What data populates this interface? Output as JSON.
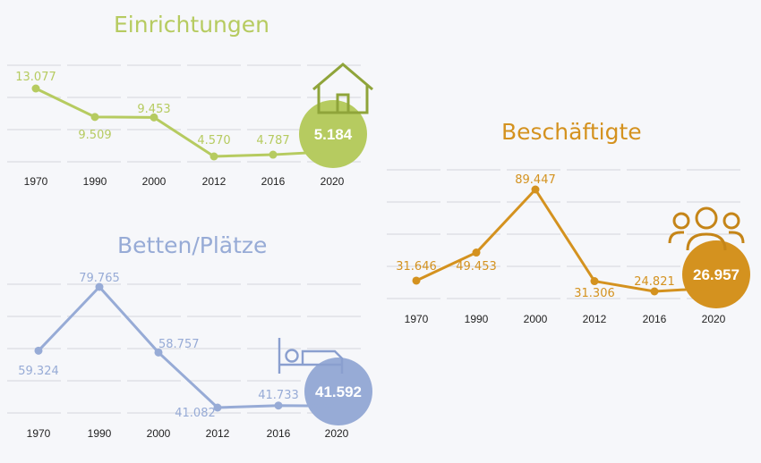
{
  "chart_data": [
    {
      "type": "line",
      "title": "Einrichtungen",
      "categories": [
        "1970",
        "1990",
        "2000",
        "2012",
        "2016",
        "2020"
      ],
      "values": [
        13077,
        9509,
        9453,
        4570,
        4787,
        5184
      ],
      "labels": [
        "13.077",
        "9.509",
        "9.453",
        "4.570",
        "4.787",
        "5.184"
      ],
      "color": "#b6cb60",
      "icon": "house-icon"
    },
    {
      "type": "line",
      "title": "Betten/Plätze",
      "categories": [
        "1970",
        "1990",
        "2000",
        "2012",
        "2016",
        "2020"
      ],
      "values": [
        59324,
        79765,
        58757,
        41082,
        41733,
        41592
      ],
      "labels": [
        "59.324",
        "79.765",
        "58.757",
        "41.082",
        "41.733",
        "41.592"
      ],
      "color": "#97abd6",
      "icon": "bed-icon"
    },
    {
      "type": "line",
      "title": "Beschäftigte",
      "categories": [
        "1970",
        "1990",
        "2000",
        "2012",
        "2016",
        "2020"
      ],
      "values": [
        31646,
        49453,
        89447,
        31306,
        24821,
        26957
      ],
      "labels": [
        "31.646",
        "49.453",
        "89.447",
        "31.306",
        "24.821",
        "26.957"
      ],
      "color": "#d4921f",
      "icon": "people-icon"
    }
  ]
}
